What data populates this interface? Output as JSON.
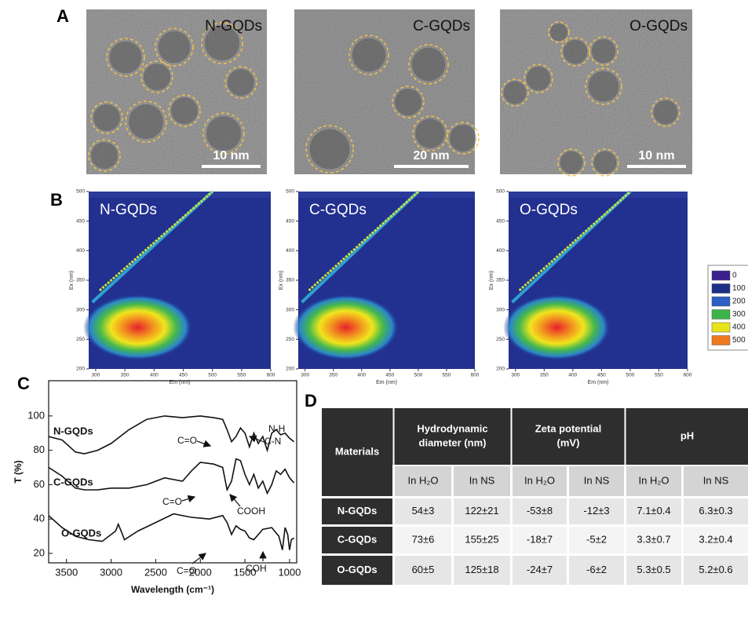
{
  "panel_labels": [
    "A",
    "B",
    "C",
    "D"
  ],
  "panel_a": {
    "images": [
      {
        "label": "N-GQDs",
        "scale_bar": "10 nm"
      },
      {
        "label": "C-GQDs",
        "scale_bar": "20 nm"
      },
      {
        "label": "O-GQDs",
        "scale_bar": "10 nm"
      }
    ]
  },
  "panel_b": {
    "plots": [
      {
        "label": "N-GQDs"
      },
      {
        "label": "C-GQDs"
      },
      {
        "label": "O-GQDs"
      }
    ],
    "x_label": "Em (nm)",
    "y_label": "Ex (nm)",
    "xlim": [
      288,
      600
    ],
    "ylim": [
      200,
      500
    ],
    "xticks": [
      300,
      350,
      400,
      450,
      500,
      550,
      600
    ],
    "yticks": [
      200,
      250,
      300,
      350,
      400,
      450,
      500
    ],
    "colorbar": {
      "ticks": [
        0,
        100,
        200,
        300,
        400,
        500
      ],
      "colors": [
        "#3b1f8f",
        "#1c2f86",
        "#2d5fc4",
        "#3cb44a",
        "#e8e41c",
        "#f07a22"
      ]
    }
  },
  "panel_c": {
    "type": "line",
    "y_label": "T (%)",
    "x_label": "Wavelength (cm⁻¹)",
    "xlim": [
      3700,
      920
    ],
    "ylim": [
      14.5,
      120.5
    ],
    "xticks": [
      3500,
      3000,
      2500,
      2000,
      1500,
      1000
    ],
    "yticks": [
      20,
      40,
      60,
      80,
      100
    ],
    "series": [
      {
        "name": "N-GQDs",
        "color": "#111111",
        "x": [
          3700,
          3550,
          3400,
          3300,
          3150,
          3000,
          2800,
          2600,
          2400,
          2200,
          2000,
          1850,
          1750,
          1700,
          1650,
          1600,
          1550,
          1500,
          1450,
          1400,
          1350,
          1300,
          1250,
          1200,
          1150,
          1100,
          1050,
          1000,
          950
        ],
        "values": [
          88,
          86,
          79,
          78,
          80,
          84,
          92,
          98,
          100,
          99,
          100,
          99,
          98,
          92,
          85,
          88,
          93,
          90,
          82,
          90,
          84,
          88,
          80,
          90,
          92,
          89,
          90,
          87,
          85
        ]
      },
      {
        "name": "C-GQDs",
        "color": "#111111",
        "x": [
          3700,
          3550,
          3400,
          3300,
          3150,
          3000,
          2800,
          2600,
          2400,
          2200,
          2100,
          2000,
          1850,
          1750,
          1700,
          1650,
          1600,
          1550,
          1500,
          1450,
          1400,
          1350,
          1300,
          1250,
          1200,
          1150,
          1100,
          1050,
          1000,
          950
        ],
        "values": [
          70,
          65,
          58,
          57,
          57,
          58,
          58,
          60,
          64,
          62,
          68,
          73,
          72,
          70,
          57,
          62,
          75,
          74,
          66,
          60,
          66,
          58,
          62,
          55,
          60,
          68,
          66,
          69,
          64,
          61
        ]
      },
      {
        "name": "O-GQDs",
        "color": "#111111",
        "x": [
          3700,
          3550,
          3400,
          3250,
          3100,
          2950,
          2920,
          2880,
          2850,
          2700,
          2500,
          2300,
          2100,
          1900,
          1750,
          1700,
          1650,
          1600,
          1550,
          1500,
          1450,
          1400,
          1300,
          1200,
          1120,
          1080,
          1050,
          1020,
          1000,
          980,
          950
        ],
        "values": [
          42,
          35,
          30,
          28,
          27,
          33,
          37,
          32,
          28,
          33,
          38,
          43,
          41,
          40,
          42,
          38,
          31,
          36,
          34,
          33,
          29,
          28,
          34,
          35,
          30,
          22,
          35,
          31,
          22,
          28,
          29
        ]
      }
    ],
    "annotations": [
      "C=O",
      "N-H",
      "C-N",
      "C=O",
      "COOH",
      "C=O",
      "COH"
    ]
  },
  "panel_d": {
    "header": [
      [
        "Materials"
      ],
      [
        "Hydrodynamic",
        "diameter (nm)"
      ],
      [
        "Zeta potential",
        "(mV)"
      ],
      [
        "pH"
      ]
    ],
    "subheader": [
      "In H₂O",
      "In NS",
      "In H₂O",
      "In NS",
      "In H₂O",
      "In NS"
    ],
    "rows": [
      [
        "N-GQDs",
        "54±3",
        "122±21",
        "-53±8",
        "-12±3",
        "7.1±0.4",
        "6.3±0.3"
      ],
      [
        "C-GQDs",
        "73±6",
        "155±25",
        "-18±7",
        "-5±2",
        "3.3±0.7",
        "3.2±0.4"
      ],
      [
        "O-GQDs",
        "60±5",
        "125±18",
        "-24±7",
        "-6±2",
        "5.3±0.5",
        "5.2±0.6"
      ]
    ]
  }
}
